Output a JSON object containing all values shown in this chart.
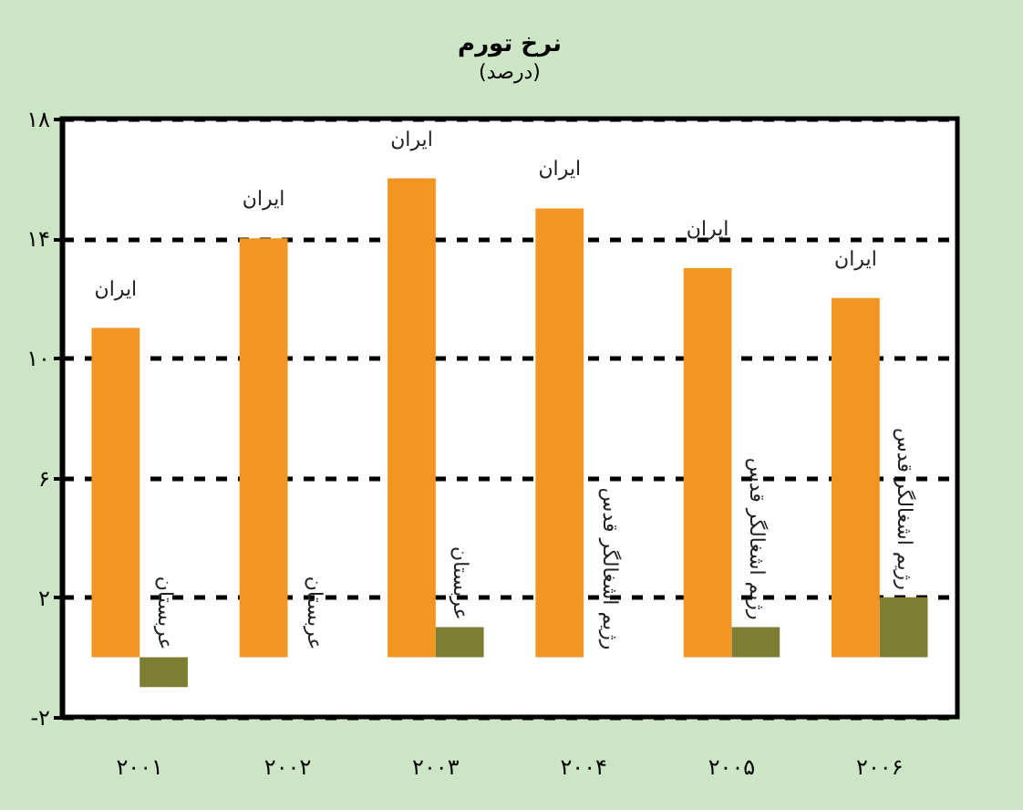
{
  "chart_data": {
    "type": "bar",
    "title": "نرخ تورم",
    "subtitle": "(درصد)",
    "categories": [
      "۲۰۰۱",
      "۲۰۰۲",
      "۲۰۰۳",
      "۲۰۰۴",
      "۲۰۰۵",
      "۲۰۰۶"
    ],
    "series": [
      {
        "color": "#f39621",
        "values": [
          11,
          14,
          16,
          15,
          13,
          12
        ],
        "value_labels": [
          "ایران",
          "ایران",
          "ایران",
          "ایران",
          "ایران",
          "ایران"
        ]
      },
      {
        "color": "#7e7e32",
        "values": [
          -1,
          null,
          1,
          null,
          1,
          2
        ],
        "value_labels": [
          "عربستان",
          null,
          "عربستان",
          null,
          "رژیم اشغالگر قدس",
          "رژیم اشغالگر قدس"
        ]
      }
    ],
    "annotations": [
      {
        "text": "عربستان",
        "x": "۲۰۰۲",
        "y": 0
      },
      {
        "text": "رژیم اشغالگر قدس",
        "x": "۲۰۰۴",
        "y": 0
      }
    ],
    "ylim": [
      -2,
      18
    ],
    "yticks": [
      {
        "value": -2,
        "label": "-۲"
      },
      {
        "value": 2,
        "label": "۲"
      },
      {
        "value": 6,
        "label": "۶"
      },
      {
        "value": 10,
        "label": "۱۰"
      },
      {
        "value": 14,
        "label": "۱۴"
      },
      {
        "value": 18,
        "label": "۱۸"
      }
    ],
    "grid": "y",
    "legend": false
  }
}
